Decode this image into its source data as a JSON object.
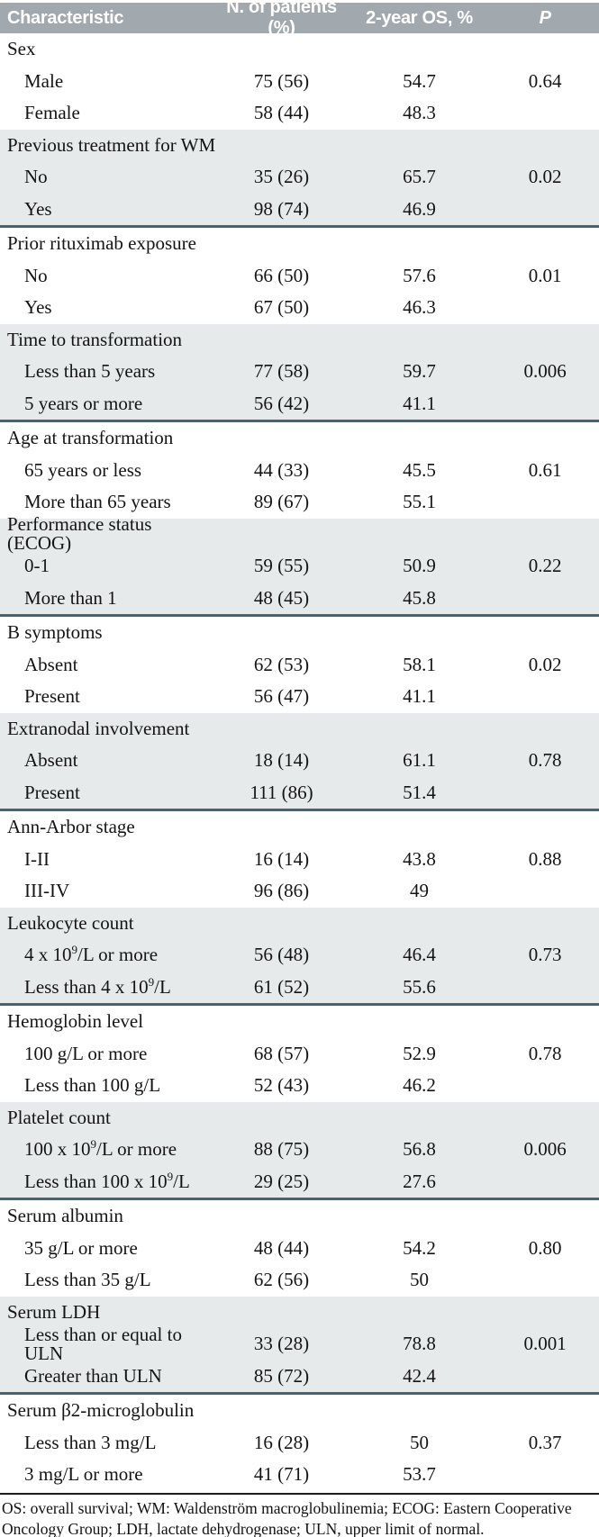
{
  "colors": {
    "header_bg": "#a1a9ae",
    "shade_bg": "#e7eaeb",
    "rule_color": "#51616c"
  },
  "table": {
    "columns": [
      "Characteristic",
      "N. of patients (%)",
      "2-year OS, %",
      "P"
    ],
    "groups": [
      {
        "name": "Sex",
        "shaded": false,
        "rows": [
          {
            "label": "Male",
            "n": "75 (56)",
            "os": "54.7",
            "p": "0.64"
          },
          {
            "label": "Female",
            "n": "58 (44)",
            "os": "48.3",
            "p": ""
          }
        ]
      },
      {
        "name": "Previous treatment for WM",
        "shaded": true,
        "rows": [
          {
            "label": "No",
            "n": "35 (26)",
            "os": "65.7",
            "p": "0.02"
          },
          {
            "label": "Yes",
            "n": "98 (74)",
            "os": "46.9",
            "p": ""
          }
        ]
      },
      {
        "name": "Prior rituximab exposure",
        "shaded": false,
        "rows": [
          {
            "label": "No",
            "n": "66 (50)",
            "os": "57.6",
            "p": "0.01"
          },
          {
            "label": "Yes",
            "n": "67 (50)",
            "os": "46.3",
            "p": ""
          }
        ]
      },
      {
        "name": "Time to transformation",
        "shaded": true,
        "rows": [
          {
            "label": "Less than 5 years",
            "n": "77 (58)",
            "os": "59.7",
            "p": "0.006"
          },
          {
            "label": "5 years or more",
            "n": "56 (42)",
            "os": "41.1",
            "p": ""
          }
        ]
      },
      {
        "name": "Age at transformation",
        "shaded": false,
        "rows": [
          {
            "label": "65 years or less",
            "n": "44 (33)",
            "os": "45.5",
            "p": "0.61"
          },
          {
            "label": "More than 65 years",
            "n": "89 (67)",
            "os": "55.1",
            "p": ""
          }
        ]
      },
      {
        "name": "Performance status (ECOG)",
        "shaded": true,
        "rows": [
          {
            "label": "0-1",
            "n": "59 (55)",
            "os": "50.9",
            "p": "0.22"
          },
          {
            "label": "More than 1",
            "n": "48 (45)",
            "os": "45.8",
            "p": ""
          }
        ]
      },
      {
        "name": "B symptoms",
        "shaded": false,
        "rows": [
          {
            "label": "Absent",
            "n": "62 (53)",
            "os": "58.1",
            "p": "0.02"
          },
          {
            "label": "Present",
            "n": "56 (47)",
            "os": "41.1",
            "p": ""
          }
        ]
      },
      {
        "name": "Extranodal involvement",
        "shaded": true,
        "rows": [
          {
            "label": "Absent",
            "n": "18 (14)",
            "os": "61.1",
            "p": "0.78"
          },
          {
            "label": "Present",
            "n": "111 (86)",
            "os": "51.4",
            "p": ""
          }
        ]
      },
      {
        "name": "Ann-Arbor stage",
        "shaded": false,
        "rows": [
          {
            "label": "I-II",
            "n": "16 (14)",
            "os": "43.8",
            "p": "0.88"
          },
          {
            "label": "III-IV",
            "n": "96 (86)",
            "os": "49",
            "p": ""
          }
        ]
      },
      {
        "name": "Leukocyte count",
        "shaded": true,
        "rows": [
          {
            "label": "4 x 10^9/L or more",
            "n": "56 (48)",
            "os": "46.4",
            "p": "0.73"
          },
          {
            "label": "Less than 4 x 10^9/L",
            "n": "61 (52)",
            "os": "55.6",
            "p": ""
          }
        ]
      },
      {
        "name": "Hemoglobin level",
        "shaded": false,
        "rows": [
          {
            "label": "100 g/L or more",
            "n": "68 (57)",
            "os": "52.9",
            "p": "0.78"
          },
          {
            "label": "Less than 100 g/L",
            "n": "52 (43)",
            "os": "46.2",
            "p": ""
          }
        ]
      },
      {
        "name": "Platelet count",
        "shaded": true,
        "rows": [
          {
            "label": "100 x 10^9/L or more",
            "n": "88 (75)",
            "os": "56.8",
            "p": "0.006"
          },
          {
            "label": "Less than 100 x 10^9/L",
            "n": "29 (25)",
            "os": "27.6",
            "p": ""
          }
        ]
      },
      {
        "name": "Serum albumin",
        "shaded": false,
        "rows": [
          {
            "label": "35 g/L or more",
            "n": "48 (44)",
            "os": "54.2",
            "p": "0.80"
          },
          {
            "label": "Less than 35 g/L",
            "n": "62 (56)",
            "os": "50",
            "p": ""
          }
        ]
      },
      {
        "name": "Serum LDH",
        "shaded": true,
        "rows": [
          {
            "label": "Less than or equal to ULN",
            "n": "33 (28)",
            "os": "78.8",
            "p": "0.001"
          },
          {
            "label": "Greater than ULN",
            "n": "85 (72)",
            "os": "42.4",
            "p": ""
          }
        ]
      },
      {
        "name": "Serum β2-microglobulin",
        "shaded": false,
        "rows": [
          {
            "label": "Less than 3 mg/L",
            "n": "16 (28)",
            "os": "50",
            "p": "0.37"
          },
          {
            "label": "3 mg/L or more",
            "n": "41 (71)",
            "os": "53.7",
            "p": ""
          }
        ]
      }
    ],
    "footnote": "OS: overall survival; WM: Waldenström macroglobulinemia; ECOG: Eastern Cooperative Oncology Group; LDH, lactate dehydrogenase; ULN, upper limit of normal."
  }
}
